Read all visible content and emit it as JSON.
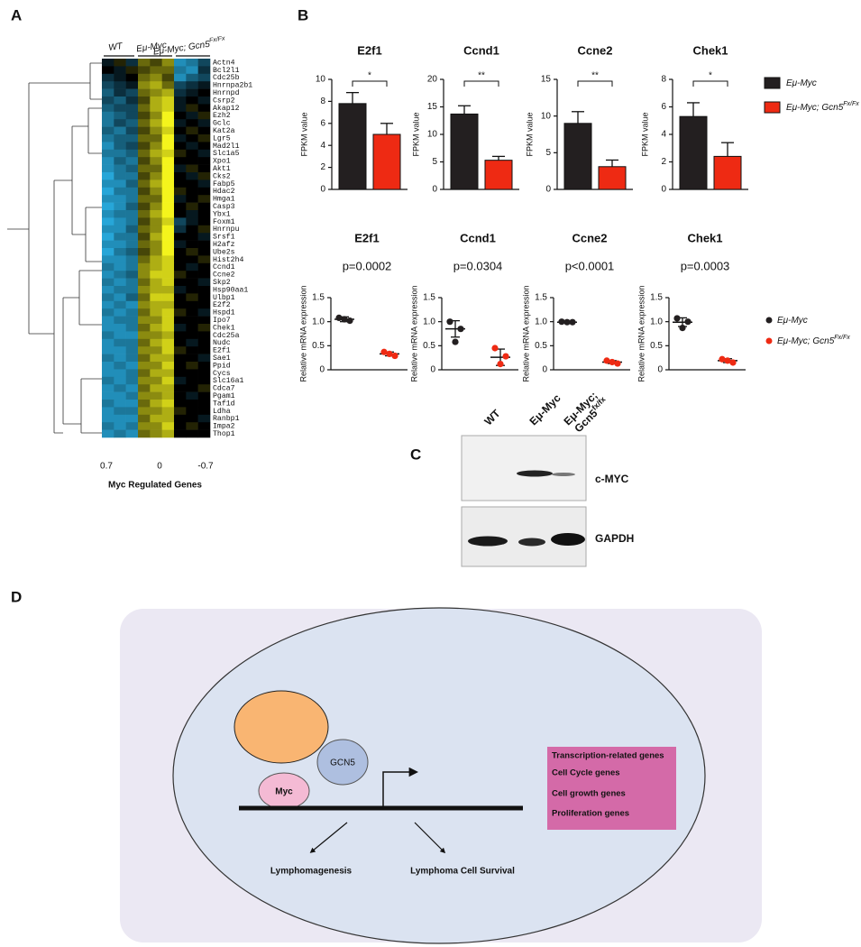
{
  "panel_labels": [
    "A",
    "B",
    "C",
    "D"
  ],
  "legend": [
    {
      "name": "Eμ-Myc",
      "color": "#231f20"
    },
    {
      "name": "Eμ-Myc; Gcn5",
      "sup": "Fx/Fx",
      "color": "#ee2a13"
    }
  ],
  "heatmap": {
    "type": "heatmap",
    "groups": [
      {
        "name": "WT"
      },
      {
        "name": "Eμ-Myc"
      },
      {
        "name": "Eμ-Myc; Gcn5",
        "sup": "Fx/Fx"
      }
    ],
    "genes": [
      "Actn4",
      "Bcl2l1",
      "Cdc25b",
      "Hnrnpa2b1",
      "Hnrnpd",
      "Csrp2",
      "Akap12",
      "Ezh2",
      "Gclc",
      "Kat2a",
      "Lgr5",
      "Mad2l1",
      "Slc1a5",
      "Xpo1",
      "Akt1",
      "Cks2",
      "Fabp5",
      "Hdac2",
      "Hmga1",
      "Casp3",
      "Ybx1",
      "Foxm1",
      "Hnrnpu",
      "Srsf1",
      "H2afz",
      "Ube2s",
      "Hist2h4",
      "Ccnd1",
      "Ccne2",
      "Skp2",
      "Hsp90aa1",
      "Ulbp1",
      "E2f2",
      "Hspd1",
      "Ipo7",
      "Chek1",
      "Cdc25a",
      "Nudc",
      "E2f1",
      "Sae1",
      "Ppid",
      "Cycs",
      "Slc16a1",
      "Cdca7",
      "Pgam1",
      "Taf1d",
      "Ldha",
      "Ranbp1",
      "Impa2",
      "Thop1"
    ],
    "values": [
      [
        -0.1,
        0.1,
        -0.2,
        0.3,
        0.2,
        0.4,
        -0.6,
        -0.5,
        -0.3
      ],
      [
        0.0,
        -0.1,
        0.1,
        0.2,
        0.3,
        0.3,
        -0.5,
        -0.6,
        -0.2
      ],
      [
        -0.2,
        -0.1,
        0.0,
        0.3,
        0.4,
        0.2,
        -0.6,
        -0.4,
        -0.3
      ],
      [
        -0.3,
        -0.2,
        -0.1,
        0.4,
        0.5,
        0.3,
        -0.3,
        -0.2,
        -0.1
      ],
      [
        -0.4,
        -0.2,
        -0.3,
        0.3,
        0.4,
        0.5,
        -0.2,
        -0.1,
        0.0
      ],
      [
        -0.3,
        -0.4,
        -0.2,
        0.2,
        0.5,
        0.6,
        -0.1,
        0.0,
        -0.1
      ],
      [
        -0.4,
        -0.3,
        -0.3,
        0.3,
        0.5,
        0.6,
        -0.1,
        0.1,
        0.0
      ],
      [
        -0.5,
        -0.4,
        -0.3,
        0.2,
        0.4,
        0.7,
        0.0,
        -0.1,
        0.1
      ],
      [
        -0.5,
        -0.3,
        -0.4,
        0.3,
        0.5,
        0.7,
        -0.1,
        0.0,
        -0.1
      ],
      [
        -0.4,
        -0.5,
        -0.3,
        0.2,
        0.4,
        0.6,
        0.0,
        0.1,
        0.0
      ],
      [
        -0.5,
        -0.4,
        -0.4,
        0.3,
        0.3,
        0.7,
        -0.1,
        0.0,
        0.1
      ],
      [
        -0.6,
        -0.4,
        -0.3,
        0.2,
        0.4,
        0.7,
        0.0,
        -0.1,
        0.0
      ],
      [
        -0.5,
        -0.5,
        -0.4,
        0.3,
        0.5,
        0.6,
        0.1,
        0.0,
        -0.1
      ],
      [
        -0.6,
        -0.4,
        -0.5,
        0.2,
        0.4,
        0.7,
        0.0,
        0.0,
        0.0
      ],
      [
        -0.6,
        -0.5,
        -0.4,
        0.3,
        0.3,
        0.7,
        -0.1,
        0.1,
        0.0
      ],
      [
        -0.7,
        -0.5,
        -0.5,
        0.2,
        0.4,
        0.7,
        0.0,
        -0.1,
        0.1
      ],
      [
        -0.6,
        -0.6,
        -0.4,
        0.3,
        0.5,
        0.7,
        0.0,
        0.0,
        -0.1
      ],
      [
        -0.7,
        -0.5,
        -0.5,
        0.2,
        0.4,
        0.7,
        0.1,
        0.0,
        0.0
      ],
      [
        -0.6,
        -0.6,
        -0.5,
        0.3,
        0.3,
        0.7,
        -0.1,
        0.0,
        0.1
      ],
      [
        -0.7,
        -0.6,
        -0.4,
        0.2,
        0.4,
        0.7,
        0.0,
        0.1,
        0.0
      ],
      [
        -0.6,
        -0.5,
        -0.5,
        0.3,
        0.5,
        0.7,
        0.0,
        -0.1,
        0.0
      ],
      [
        -0.7,
        -0.6,
        -0.5,
        0.2,
        0.4,
        0.6,
        -0.3,
        -0.1,
        0.0
      ],
      [
        -0.6,
        -0.6,
        -0.4,
        0.3,
        0.4,
        0.7,
        -0.2,
        0.0,
        0.1
      ],
      [
        -0.7,
        -0.5,
        -0.5,
        0.2,
        0.5,
        0.7,
        0.0,
        0.0,
        -0.1
      ],
      [
        -0.6,
        -0.6,
        -0.5,
        0.3,
        0.4,
        0.7,
        -0.1,
        0.0,
        0.0
      ],
      [
        -0.7,
        -0.5,
        -0.4,
        0.2,
        0.4,
        0.7,
        0.0,
        0.1,
        0.0
      ],
      [
        -0.6,
        -0.6,
        -0.5,
        0.3,
        0.5,
        0.6,
        0.0,
        0.0,
        0.1
      ],
      [
        -0.5,
        -0.6,
        -0.5,
        0.4,
        0.5,
        0.6,
        0.0,
        -0.1,
        0.0
      ],
      [
        -0.6,
        -0.5,
        -0.4,
        0.4,
        0.6,
        0.6,
        0.1,
        0.0,
        0.0
      ],
      [
        -0.5,
        -0.6,
        -0.5,
        0.3,
        0.5,
        0.6,
        0.0,
        0.0,
        -0.1
      ],
      [
        -0.6,
        -0.5,
        -0.5,
        0.4,
        0.5,
        0.5,
        -0.1,
        0.0,
        0.0
      ],
      [
        -0.5,
        -0.6,
        -0.4,
        0.3,
        0.6,
        0.6,
        0.0,
        0.1,
        0.0
      ],
      [
        -0.6,
        -0.5,
        -0.6,
        0.4,
        0.5,
        0.5,
        0.0,
        0.0,
        0.0
      ],
      [
        -0.5,
        -0.6,
        -0.5,
        0.3,
        0.5,
        0.6,
        0.1,
        0.0,
        -0.1
      ],
      [
        -0.6,
        -0.5,
        -0.5,
        0.4,
        0.4,
        0.6,
        0.0,
        0.0,
        0.0
      ],
      [
        -0.6,
        -0.6,
        -0.5,
        0.3,
        0.5,
        0.6,
        -0.1,
        0.0,
        0.1
      ],
      [
        -0.5,
        -0.6,
        -0.6,
        0.4,
        0.4,
        0.5,
        0.0,
        0.0,
        0.0
      ],
      [
        -0.6,
        -0.5,
        -0.5,
        0.3,
        0.5,
        0.6,
        0.0,
        -0.1,
        0.0
      ],
      [
        -0.6,
        -0.6,
        -0.5,
        0.4,
        0.4,
        0.6,
        0.1,
        0.0,
        0.0
      ],
      [
        -0.5,
        -0.6,
        -0.5,
        0.3,
        0.5,
        0.5,
        0.0,
        0.0,
        -0.1
      ],
      [
        -0.6,
        -0.5,
        -0.6,
        0.4,
        0.4,
        0.6,
        0.0,
        0.1,
        0.0
      ],
      [
        -0.6,
        -0.6,
        -0.5,
        0.3,
        0.5,
        0.5,
        0.0,
        0.0,
        0.0
      ],
      [
        -0.5,
        -0.6,
        -0.5,
        0.4,
        0.4,
        0.6,
        -0.1,
        0.0,
        0.0
      ],
      [
        -0.6,
        -0.5,
        -0.6,
        0.3,
        0.5,
        0.5,
        0.0,
        0.0,
        0.1
      ],
      [
        -0.6,
        -0.6,
        -0.5,
        0.4,
        0.4,
        0.5,
        0.0,
        -0.1,
        0.0
      ],
      [
        -0.5,
        -0.6,
        -0.6,
        0.3,
        0.5,
        0.6,
        0.0,
        0.0,
        0.0
      ],
      [
        -0.6,
        -0.5,
        -0.5,
        0.4,
        0.4,
        0.5,
        0.1,
        0.0,
        0.0
      ],
      [
        -0.6,
        -0.6,
        -0.6,
        0.3,
        0.5,
        0.5,
        0.0,
        0.0,
        -0.1
      ],
      [
        -0.5,
        -0.6,
        -0.5,
        0.4,
        0.4,
        0.6,
        0.0,
        0.1,
        0.0
      ],
      [
        -0.6,
        -0.5,
        -0.6,
        0.3,
        0.4,
        0.5,
        0.0,
        0.0,
        0.0
      ]
    ],
    "colorbar_ticks": [
      0.7,
      0,
      -0.7
    ],
    "low_color": "#27a6d8",
    "mid_color": "#000000",
    "high_color": "#f4f41c",
    "xlabel": "Myc Regulated Genes"
  },
  "chart_data": [
    {
      "type": "bar",
      "title": "E2f1",
      "ylabel": "FPKM value",
      "values": [
        7.8,
        5.0
      ],
      "errors": [
        1.0,
        1.0
      ],
      "annotation": "*",
      "ylim": [
        0,
        10
      ],
      "yticks": [
        0,
        2,
        4,
        6,
        8,
        10
      ]
    },
    {
      "type": "bar",
      "title": "Ccnd1",
      "ylabel": "FPKM value",
      "values": [
        13.7,
        5.3
      ],
      "errors": [
        1.5,
        0.7
      ],
      "annotation": "**",
      "ylim": [
        0,
        20
      ],
      "yticks": [
        0,
        5,
        10,
        15,
        20
      ]
    },
    {
      "type": "bar",
      "title": "Ccne2",
      "ylabel": "FPKM value",
      "values": [
        9.0,
        3.1
      ],
      "errors": [
        1.6,
        0.9
      ],
      "annotation": "**",
      "ylim": [
        0,
        15
      ],
      "yticks": [
        0,
        5,
        10,
        15
      ]
    },
    {
      "type": "bar",
      "title": "Chek1",
      "ylabel": "FPKM value",
      "values": [
        5.3,
        2.4
      ],
      "errors": [
        1.0,
        1.0
      ],
      "annotation": "*",
      "ylim": [
        0,
        8
      ],
      "yticks": [
        0,
        2,
        4,
        6,
        8
      ]
    },
    {
      "type": "dot",
      "title": "E2f1",
      "subtitle": "p=0.0002",
      "ylabel": "Relative mRNA expression",
      "groups": [
        {
          "values": [
            1.08,
            1.02,
            1.05
          ],
          "mean": 1.05,
          "error": 0.05
        },
        {
          "values": [
            0.37,
            0.29,
            0.33
          ],
          "mean": 0.33,
          "error": 0.04
        }
      ],
      "ylim": [
        0,
        1.5
      ],
      "yticks": [
        0,
        0.5,
        {
          "value": 1,
          "label": "1.0"
        },
        1.5
      ]
    },
    {
      "type": "dot",
      "title": "Ccnd1",
      "subtitle": "p=0.0304",
      "ylabel": "Relative mRNA expression",
      "groups": [
        {
          "values": [
            1.0,
            0.85,
            0.58
          ],
          "mean": 0.85,
          "error": 0.17
        },
        {
          "values": [
            0.45,
            0.28,
            0.12
          ],
          "mean": 0.26,
          "error": 0.17
        }
      ],
      "ylim": [
        0,
        1.5
      ],
      "yticks": [
        0,
        0.5,
        {
          "value": 1,
          "label": "1.0"
        },
        1.5
      ]
    },
    {
      "type": "dot",
      "title": "Ccne2",
      "subtitle": "p<0.0001",
      "ylabel": "Relative mRNA expression",
      "groups": [
        {
          "values": [
            1.0,
            0.99,
            0.99
          ],
          "mean": 0.99,
          "error": 0.01
        },
        {
          "values": [
            0.19,
            0.13,
            0.16
          ],
          "mean": 0.16,
          "error": 0.03
        }
      ],
      "ylim": [
        0,
        1.5
      ],
      "yticks": [
        0,
        0.5,
        {
          "value": 1,
          "label": "1.0"
        },
        1.5
      ]
    },
    {
      "type": "dot",
      "title": "Chek1",
      "subtitle": "p=0.0003",
      "ylabel": "Relative mRNA expression",
      "groups": [
        {
          "values": [
            1.07,
            1.0,
            0.87
          ],
          "mean": 0.99,
          "error": 0.09
        },
        {
          "values": [
            0.22,
            0.15,
            0.19
          ],
          "mean": 0.19,
          "error": 0.04
        }
      ],
      "ylim": [
        0,
        1.5
      ],
      "yticks": [
        0,
        0.5,
        {
          "value": 1,
          "label": "1.0"
        },
        1.5
      ]
    }
  ],
  "blot": {
    "lanes": [
      {
        "text": "WT"
      },
      {
        "text": "Eμ-Myc"
      },
      {
        "text": "Eμ-Myc;",
        "text2": "Gcn5",
        "sup": "fx/fx"
      }
    ],
    "bands": [
      "c-MYC",
      "GAPDH"
    ]
  },
  "diagram": {
    "complex": [
      "Myc",
      "GCN5"
    ],
    "gene_box": [
      "Transcription-related genes",
      "Cell Cycle genes",
      "Cell growth genes",
      "Proliferation genes"
    ],
    "outcomes": [
      "Lymphomagenesis",
      "Lymphoma Cell Survival"
    ]
  }
}
